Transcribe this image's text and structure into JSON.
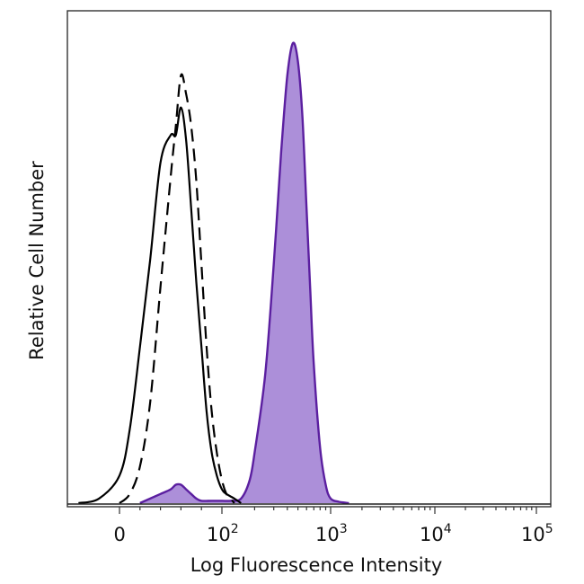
{
  "chart_data": {
    "type": "area",
    "xlabel": "Log Fluorescence Intensity",
    "ylabel": "Relative Cell Number",
    "x_scale": "biexponential",
    "xlim": [
      -50,
      200000
    ],
    "ylim": [
      0,
      1.0
    ],
    "grid": false,
    "legend": "none",
    "x_ticks": [
      {
        "value": 0,
        "base": "0",
        "exp": ""
      },
      {
        "value": 100,
        "base": "10",
        "exp": "2"
      },
      {
        "value": 1000,
        "base": "10",
        "exp": "3"
      },
      {
        "value": 10000,
        "base": "10",
        "exp": "4"
      },
      {
        "value": 100000,
        "base": "10",
        "exp": "5"
      }
    ],
    "series": [
      {
        "style": "solid",
        "color": "#000000",
        "fill": "none",
        "x": [
          -40,
          -20,
          0,
          10,
          20,
          30,
          40,
          50,
          55,
          60,
          65,
          70,
          75,
          80,
          85,
          90,
          95,
          100,
          110,
          130,
          150
        ],
        "y": [
          0.0,
          0.01,
          0.06,
          0.16,
          0.34,
          0.53,
          0.74,
          0.8,
          0.8,
          0.86,
          0.79,
          0.64,
          0.48,
          0.34,
          0.2,
          0.11,
          0.06,
          0.03,
          0.02,
          0.01,
          0.0
        ]
      },
      {
        "style": "dashed",
        "color": "#000000",
        "fill": "none",
        "x": [
          0,
          10,
          20,
          30,
          40,
          50,
          55,
          60,
          65,
          70,
          75,
          80,
          85,
          90,
          95,
          100,
          110,
          120,
          130
        ],
        "y": [
          0.0,
          0.02,
          0.08,
          0.22,
          0.47,
          0.71,
          0.82,
          0.93,
          0.89,
          0.82,
          0.7,
          0.52,
          0.34,
          0.2,
          0.11,
          0.05,
          0.02,
          0.01,
          0.0
        ]
      },
      {
        "style": "filled",
        "color": "#5b1fa0",
        "fill": "#ac8fd9",
        "x": [
          20,
          30,
          40,
          50,
          55,
          60,
          65,
          70,
          75,
          80,
          90,
          100,
          120,
          150,
          180,
          200,
          250,
          300,
          350,
          400,
          450,
          500,
          550,
          600,
          650,
          700,
          800,
          900,
          1000,
          1200,
          1500
        ],
        "y": [
          0.0,
          0.01,
          0.02,
          0.03,
          0.04,
          0.04,
          0.03,
          0.02,
          0.01,
          0.005,
          0.005,
          0.005,
          0.005,
          0.01,
          0.05,
          0.11,
          0.28,
          0.52,
          0.76,
          0.93,
          1.0,
          0.96,
          0.84,
          0.64,
          0.46,
          0.3,
          0.12,
          0.04,
          0.01,
          0.003,
          0.0
        ]
      }
    ]
  }
}
